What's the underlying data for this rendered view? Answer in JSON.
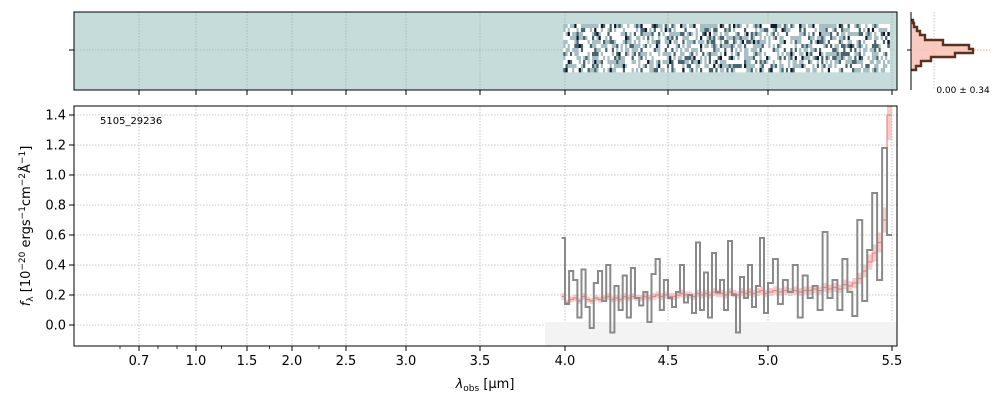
{
  "chart_data": [
    {
      "type": "heatmap",
      "description_role": "2D spectrum cutout",
      "x_tick_labels": [
        "0.7",
        "1.0",
        "1.5",
        "2.0",
        "2.5",
        "3.0",
        "3.5",
        "4.0",
        "4.5",
        "5.0",
        "5.5"
      ],
      "data_x_range_um": [
        3.99,
        5.49
      ],
      "colormap": [
        "#ffffff",
        "#a7bfc4",
        "#4a6470",
        "#101a2e"
      ],
      "background_color": "#c5dcdb",
      "grid": true
    },
    {
      "type": "line",
      "label": "5105_29236",
      "xlabel": "λ_obs [μm]",
      "xlabel_main": "λ",
      "xlabel_sub": "obs",
      "xlabel_rest": " [μm]",
      "ylabel": "f_λ [10^-20 ergs^-1cm^-2Å^-1]",
      "ylabel_text": "f",
      "ylabel_sub": "λ",
      "ylabel_p1": " [10",
      "ylabel_e1": "−20",
      "ylabel_p2": " ergs",
      "ylabel_e2": "−1",
      "ylabel_p3": "cm",
      "ylabel_e3": "−2",
      "ylabel_p4": "Å",
      "ylabel_e4": "−1",
      "ylabel_p5": "]",
      "x_scale": "reciprocal-like (wavelength)",
      "x_ticks": [
        {
          "value": 0.7,
          "label": "0.7"
        },
        {
          "value": 1.0,
          "label": "1.0"
        },
        {
          "value": 1.5,
          "label": "1.5"
        },
        {
          "value": 2.0,
          "label": "2.0"
        },
        {
          "value": 2.5,
          "label": "2.5"
        },
        {
          "value": 3.0,
          "label": "3.0"
        },
        {
          "value": 3.5,
          "label": "3.5"
        },
        {
          "value": 4.0,
          "label": "4.0"
        },
        {
          "value": 4.5,
          "label": "4.5"
        },
        {
          "value": 5.0,
          "label": "5.0"
        },
        {
          "value": 5.5,
          "label": "5.5"
        }
      ],
      "y_ticks": [
        "0.0",
        "0.2",
        "0.4",
        "0.6",
        "0.8",
        "1.0",
        "1.2",
        "1.4"
      ],
      "ylim": [
        -0.14,
        1.43
      ],
      "grid": true,
      "series": [
        {
          "name": "flux",
          "style": "step",
          "color": "#8a8a8a",
          "x": [
            3.99,
            4.01,
            4.03,
            4.05,
            4.07,
            4.09,
            4.11,
            4.13,
            4.15,
            4.17,
            4.19,
            4.21,
            4.23,
            4.25,
            4.27,
            4.29,
            4.31,
            4.33,
            4.35,
            4.37,
            4.39,
            4.41,
            4.43,
            4.45,
            4.47,
            4.49,
            4.51,
            4.53,
            4.55,
            4.57,
            4.59,
            4.61,
            4.63,
            4.65,
            4.67,
            4.69,
            4.71,
            4.73,
            4.75,
            4.77,
            4.79,
            4.81,
            4.83,
            4.85,
            4.87,
            4.89,
            4.91,
            4.93,
            4.95,
            4.97,
            4.99,
            5.01,
            5.03,
            5.05,
            5.07,
            5.09,
            5.11,
            5.13,
            5.15,
            5.17,
            5.19,
            5.21,
            5.23,
            5.25,
            5.27,
            5.29,
            5.31,
            5.33,
            5.35,
            5.37,
            5.39,
            5.41,
            5.43,
            5.45,
            5.47,
            5.49
          ],
          "values": [
            0.58,
            0.14,
            0.36,
            0.3,
            0.05,
            0.37,
            0.12,
            -0.02,
            0.28,
            0.36,
            0.16,
            0.4,
            -0.05,
            0.26,
            0.1,
            0.33,
            0.05,
            0.38,
            0.18,
            0.13,
            0.22,
            0.02,
            0.34,
            0.44,
            0.1,
            0.3,
            0.18,
            0.12,
            0.22,
            0.4,
            0.15,
            0.2,
            0.08,
            0.55,
            0.1,
            0.35,
            0.05,
            0.48,
            0.22,
            0.3,
            0.1,
            0.56,
            0.2,
            -0.05,
            0.32,
            0.18,
            0.4,
            0.12,
            0.26,
            0.58,
            0.08,
            0.28,
            0.44,
            0.14,
            0.3,
            0.22,
            0.4,
            0.05,
            0.33,
            0.18,
            0.26,
            0.1,
            0.62,
            0.18,
            0.3,
            0.1,
            0.44,
            0.22,
            0.06,
            0.7,
            0.16,
            0.5,
            0.88,
            0.3,
            1.18,
            0.6
          ]
        },
        {
          "name": "error",
          "style": "step-band",
          "color": "#f2a9a6",
          "x": [
            3.99,
            4.01,
            4.03,
            4.05,
            4.07,
            4.09,
            4.11,
            4.13,
            4.15,
            4.17,
            4.19,
            4.21,
            4.23,
            4.25,
            4.27,
            4.29,
            4.31,
            4.33,
            4.35,
            4.37,
            4.39,
            4.41,
            4.43,
            4.45,
            4.47,
            4.49,
            4.51,
            4.53,
            4.55,
            4.57,
            4.59,
            4.61,
            4.63,
            4.65,
            4.67,
            4.69,
            4.71,
            4.73,
            4.75,
            4.77,
            4.79,
            4.81,
            4.83,
            4.85,
            4.87,
            4.89,
            4.91,
            4.93,
            4.95,
            4.97,
            4.99,
            5.01,
            5.03,
            5.05,
            5.07,
            5.09,
            5.11,
            5.13,
            5.15,
            5.17,
            5.19,
            5.21,
            5.23,
            5.25,
            5.27,
            5.29,
            5.31,
            5.33,
            5.35,
            5.37,
            5.39,
            5.41,
            5.43,
            5.45,
            5.47,
            5.49
          ],
          "values": [
            0.19,
            0.15,
            0.17,
            0.18,
            0.16,
            0.19,
            0.17,
            0.16,
            0.18,
            0.17,
            0.18,
            0.19,
            0.17,
            0.18,
            0.17,
            0.19,
            0.18,
            0.19,
            0.18,
            0.18,
            0.19,
            0.18,
            0.19,
            0.2,
            0.19,
            0.2,
            0.19,
            0.19,
            0.2,
            0.21,
            0.2,
            0.2,
            0.19,
            0.21,
            0.2,
            0.21,
            0.2,
            0.22,
            0.21,
            0.21,
            0.2,
            0.22,
            0.21,
            0.2,
            0.22,
            0.21,
            0.22,
            0.21,
            0.22,
            0.23,
            0.21,
            0.22,
            0.23,
            0.22,
            0.23,
            0.22,
            0.23,
            0.22,
            0.23,
            0.23,
            0.24,
            0.23,
            0.25,
            0.24,
            0.25,
            0.24,
            0.27,
            0.26,
            0.28,
            0.31,
            0.36,
            0.42,
            0.48,
            0.55,
            0.7,
            1.4
          ]
        }
      ]
    },
    {
      "type": "bar",
      "description_role": "spatial profile (histogram)",
      "annotation": "0.00 ± 0.34",
      "grid": true
    }
  ]
}
